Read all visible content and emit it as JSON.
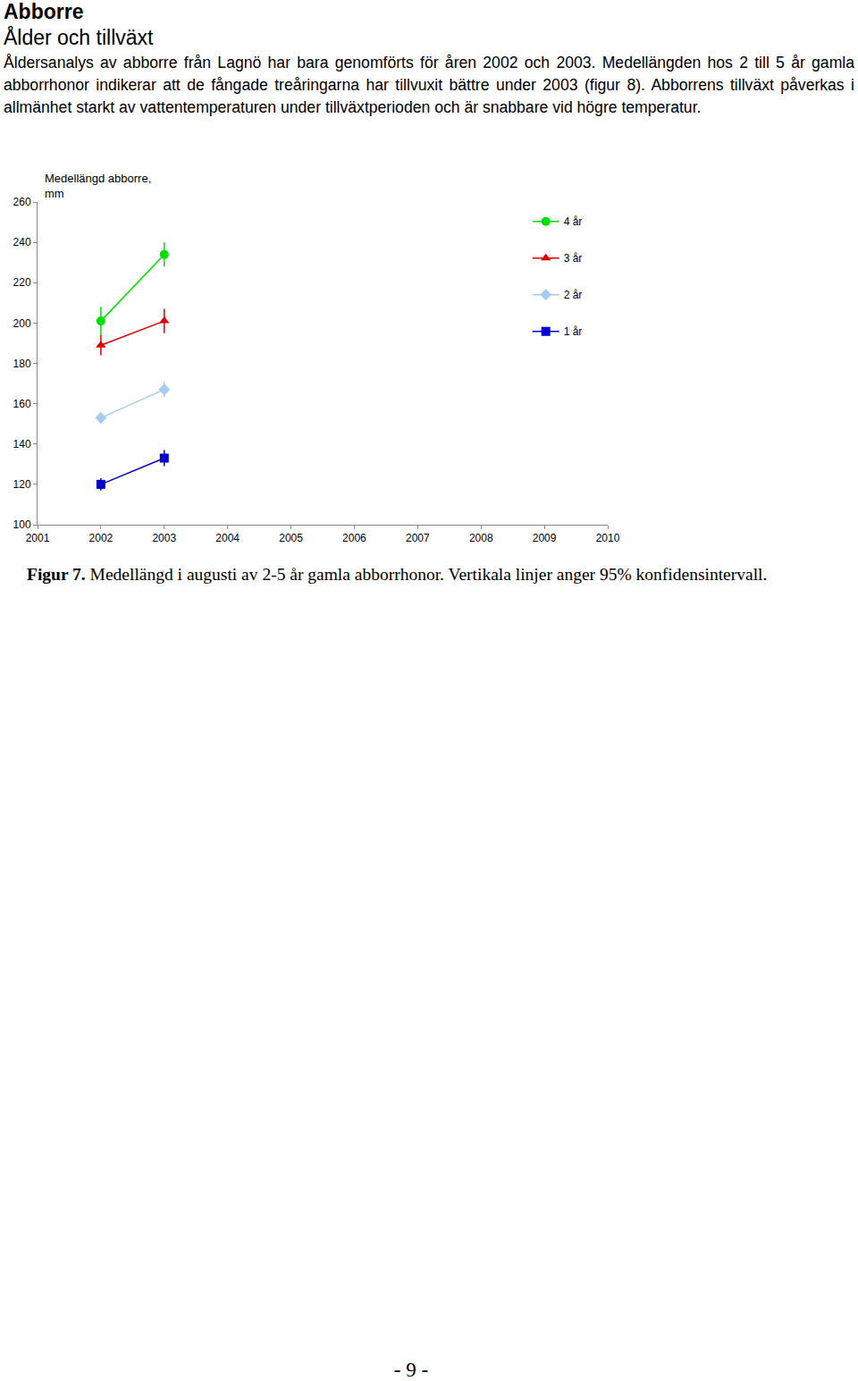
{
  "heading": "Abborre",
  "subheading": "Ålder och tillväxt",
  "paragraph": "Åldersanalys av abborre från Lagnö har bara genomförts för åren 2002 och 2003. Medellängden hos 2 till 5 år gamla abborrhonor indikerar att de fångade treåringarna har tillvuxit bättre under 2003 (figur 8). Abborrens tillväxt påverkas i allmänhet starkt av vattentemperaturen under tillväxtperioden och är snabbare vid högre temperatur.",
  "chart_data": {
    "type": "line",
    "ylabel": "Medellängd abborre,\nmm",
    "xlim": [
      2001,
      2010
    ],
    "xticks": [
      2001,
      2002,
      2003,
      2004,
      2005,
      2006,
      2007,
      2008,
      2009,
      2010
    ],
    "ylim": [
      100,
      260
    ],
    "yticks": [
      100,
      120,
      140,
      160,
      180,
      200,
      220,
      240,
      260
    ],
    "grid": false,
    "legend": "upper right",
    "series": [
      {
        "name": "4 år",
        "color": "#00e000",
        "marker": "circle",
        "line_style": "solid",
        "x": [
          2002,
          2003
        ],
        "values": [
          201,
          234
        ],
        "error": [
          7,
          6
        ]
      },
      {
        "name": "3 år",
        "color": "#dd0000",
        "marker": "triangle-up",
        "line_style": "solid",
        "x": [
          2002,
          2003
        ],
        "values": [
          189,
          201
        ],
        "error": [
          5,
          6
        ]
      },
      {
        "name": "2 år",
        "color": "#a6cdf0",
        "marker": "diamond",
        "line_style": "solid",
        "x": [
          2002,
          2003
        ],
        "values": [
          153,
          167
        ],
        "error": [
          3,
          4
        ]
      },
      {
        "name": "1 år",
        "color": "#0000cc",
        "marker": "square",
        "line_style": "solid",
        "x": [
          2002,
          2003
        ],
        "values": [
          120,
          133
        ],
        "error": [
          3,
          4
        ]
      }
    ]
  },
  "caption": {
    "label": "Figur 7.",
    "text": "Medellängd i augusti av 2-5 år gamla abborrhonor. Vertikala linjer anger 95% konfidensintervall."
  },
  "page_number": "- 9 -"
}
